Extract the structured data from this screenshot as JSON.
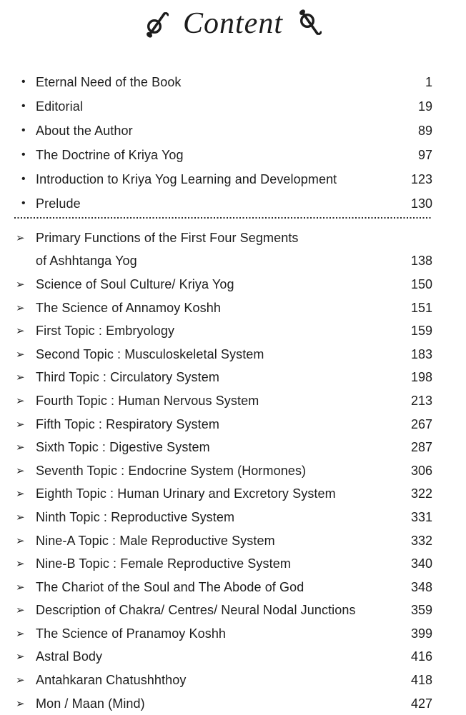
{
  "page": {
    "title": "Content"
  },
  "toc": {
    "front_matter": {
      "bullet": "•",
      "bullet_icon": "dot-bullet-icon",
      "items": [
        {
          "title": "Eternal Need of the Book",
          "page": "1"
        },
        {
          "title": "Editorial",
          "page": "19"
        },
        {
          "title": "About the Author",
          "page": "89"
        },
        {
          "title": "The Doctrine of Kriya Yog",
          "page": "97"
        },
        {
          "title": "Introduction to Kriya Yog Learning and Development",
          "page": "123"
        },
        {
          "title": "Prelude",
          "page": "130"
        }
      ]
    },
    "chapters": {
      "bullet": "➢",
      "bullet_icon": "arrow-bullet-icon",
      "items": [
        {
          "title": "Primary Functions of the First Four Segments",
          "title_line2": "of Ashhtanga Yog",
          "page": "138"
        },
        {
          "title": "Science of Soul Culture/ Kriya Yog",
          "page": "150"
        },
        {
          "title": "The Science of Annamoy Koshh",
          "page": "151"
        },
        {
          "title": "First Topic : Embryology",
          "page": "159"
        },
        {
          "title": "Second Topic : Musculoskeletal System",
          "page": "183"
        },
        {
          "title": "Third Topic : Circulatory System",
          "page": "198"
        },
        {
          "title": "Fourth Topic : Human Nervous System",
          "page": "213"
        },
        {
          "title": "Fifth Topic : Respiratory System",
          "page": "267"
        },
        {
          "title": "Sixth Topic : Digestive System",
          "page": "287"
        },
        {
          "title": "Seventh Topic : Endocrine System (Hormones)",
          "page": "306"
        },
        {
          "title": "Eighth Topic : Human Urinary and Excretory System",
          "page": "322"
        },
        {
          "title": "Ninth Topic : Reproductive System",
          "page": "331"
        },
        {
          "title": "Nine-A Topic : Male Reproductive System",
          "page": "332"
        },
        {
          "title": "Nine-B Topic : Female Reproductive System",
          "page": "340"
        },
        {
          "title": "The Chariot of the Soul and The Abode of God",
          "page": "348"
        },
        {
          "title": "Description of Chakra/ Centres/ Neural Nodal Junctions",
          "page": "359"
        },
        {
          "title": "The Science of Pranamoy Koshh",
          "page": "399"
        },
        {
          "title": "Astral Body",
          "page": "416"
        },
        {
          "title": "Antahkaran Chatushhthoy",
          "page": "418"
        },
        {
          "title": "Mon / Maan (Mind)",
          "page": "427"
        }
      ]
    }
  }
}
